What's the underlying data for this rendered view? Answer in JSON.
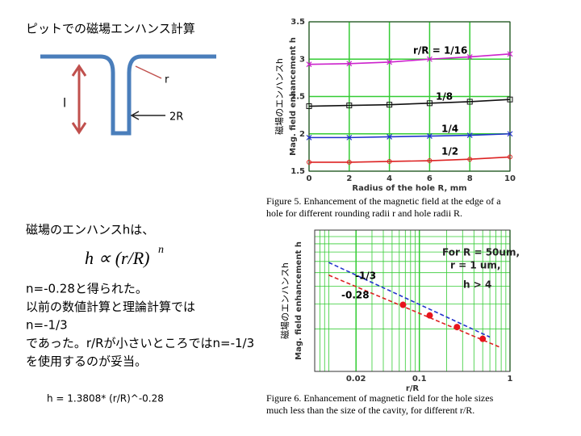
{
  "title": "ピットでの磁場エンハンス計算",
  "diagram": {
    "r_label": "r",
    "l_label": "l",
    "R_label": "2R"
  },
  "body": {
    "intro": "磁場のエンハンスhは、",
    "formula_base": "h ∝ (r/R)",
    "formula_exp": "n",
    "lines": [
      "n=-0.28と得られた。",
      "以前の数値計算と理論計算では",
      "n=-1/3",
      "であった。r/Rが小さいところではn=-1/3",
      "を使用するのが妥当。"
    ],
    "fit": "h = 1.3808* (r/R)^-0.28"
  },
  "chart_data": [
    {
      "type": "line",
      "side_label": "磁場のエンハンスh",
      "ylabel": "Mag. field enhancement h",
      "xlabel": "Radius of the hole R, mm",
      "caption": "Figure 5. Enhancement of the magnetic field at the edge of a hole for different rounding radii r and hole radii R.",
      "x": [
        0,
        2,
        4,
        6,
        8,
        10
      ],
      "xlim": [
        0,
        10
      ],
      "xticks": [
        0,
        2,
        4,
        6,
        8,
        10
      ],
      "ylim": [
        1.5,
        3.5
      ],
      "yticks": [
        1.5,
        2,
        2.5,
        3,
        3.5
      ],
      "grid": true,
      "grid_color": "#33cc33",
      "series": [
        {
          "name": "r/R = 1/16",
          "color": "#cc22cc",
          "marker": "x",
          "values": [
            2.93,
            2.94,
            2.96,
            3.0,
            3.03,
            3.07
          ]
        },
        {
          "name": "1/8",
          "color": "#111111",
          "marker": "square",
          "values": [
            2.37,
            2.38,
            2.39,
            2.41,
            2.43,
            2.46
          ]
        },
        {
          "name": "1/4",
          "color": "#2233cc",
          "marker": "x",
          "values": [
            1.95,
            1.95,
            1.96,
            1.97,
            1.98,
            2.0
          ]
        },
        {
          "name": "1/2",
          "color": "#dd2222",
          "marker": "circle",
          "values": [
            1.62,
            1.62,
            1.63,
            1.64,
            1.66,
            1.69
          ]
        }
      ]
    },
    {
      "type": "line",
      "log_x": true,
      "log_y": true,
      "side_label": "磁場のエンハンスh",
      "ylabel": "Mag. field enhancement h",
      "xlabel": "r/R",
      "caption": "Figure 6. Enhancement of magnetic field for the hole sizes much less than the size of the cavity, for different r/R.",
      "xlim": [
        0.007,
        1
      ],
      "xticks": [
        0.02,
        0.1,
        1
      ],
      "ylim": [
        1,
        10
      ],
      "grid": true,
      "grid_color": "#33cc33",
      "annotations": [
        "For R = 50um,",
        "r = 1 um,",
        "h > 4"
      ],
      "series": [
        {
          "name": "-1/3",
          "color": "#2233cc",
          "dashed": true,
          "x": [
            0.01,
            0.6
          ],
          "values": [
            5.9,
            1.75
          ]
        },
        {
          "name": "-0.28",
          "color": "#dd2222",
          "dashed": true,
          "x": [
            0.01,
            0.8
          ],
          "values": [
            4.8,
            1.47
          ]
        },
        {
          "color": "#e8141c",
          "marker": "dot",
          "x": [
            0.066,
            0.13,
            0.26,
            0.5
          ],
          "values": [
            2.96,
            2.49,
            2.06,
            1.7
          ]
        }
      ]
    }
  ]
}
